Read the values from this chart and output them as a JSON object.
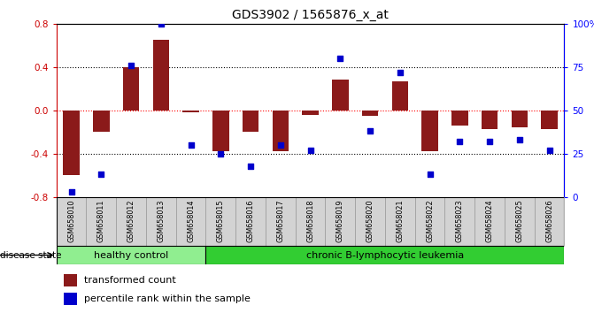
{
  "title": "GDS3902 / 1565876_x_at",
  "samples": [
    "GSM658010",
    "GSM658011",
    "GSM658012",
    "GSM658013",
    "GSM658014",
    "GSM658015",
    "GSM658016",
    "GSM658017",
    "GSM658018",
    "GSM658019",
    "GSM658020",
    "GSM658021",
    "GSM658022",
    "GSM658023",
    "GSM658024",
    "GSM658025",
    "GSM658026"
  ],
  "red_bars": [
    -0.6,
    -0.2,
    0.4,
    0.65,
    -0.02,
    -0.38,
    -0.2,
    -0.38,
    -0.04,
    0.28,
    -0.05,
    0.27,
    -0.38,
    -0.14,
    -0.17,
    -0.16,
    -0.17
  ],
  "blue_squares": [
    3,
    13,
    76,
    100,
    30,
    25,
    18,
    30,
    27,
    80,
    38,
    72,
    13,
    32,
    32,
    33,
    27
  ],
  "ylim_left": [
    -0.8,
    0.8
  ],
  "ylim_right": [
    0,
    100
  ],
  "yticks_left": [
    -0.8,
    -0.4,
    0.0,
    0.4,
    0.8
  ],
  "yticks_right": [
    0,
    25,
    50,
    75,
    100
  ],
  "ytick_labels_right": [
    "0",
    "25",
    "50",
    "75",
    "100%"
  ],
  "healthy_count": 5,
  "disease_states": [
    "healthy control",
    "chronic B-lymphocytic leukemia"
  ],
  "bar_color": "#8B1A1A",
  "square_color": "#0000CC",
  "healthy_color": "#90EE90",
  "leukemia_color": "#32CD32",
  "bg_color": "#FFFFFF",
  "legend_items": [
    "transformed count",
    "percentile rank within the sample"
  ]
}
